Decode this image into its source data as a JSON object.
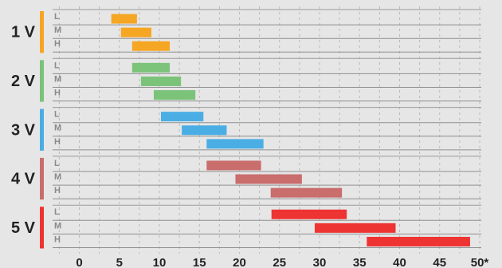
{
  "chart_data": {
    "type": "bar",
    "orientation": "horizontal-range",
    "xlim": [
      -3,
      50
    ],
    "x_ticks": [
      {
        "value": 0,
        "label": "0"
      },
      {
        "value": 5,
        "label": "5"
      },
      {
        "value": 10,
        "label": "10"
      },
      {
        "value": 15,
        "label": "15"
      },
      {
        "value": 20,
        "label": "20"
      },
      {
        "value": 25,
        "label": "25"
      },
      {
        "value": 30,
        "label": "30"
      },
      {
        "value": 35,
        "label": "35"
      },
      {
        "value": 40,
        "label": "40"
      },
      {
        "value": 45,
        "label": "45"
      },
      {
        "value": 50,
        "label": "50*"
      }
    ],
    "grid": true,
    "groups": [
      {
        "label": "1 V",
        "color": "#f5a623",
        "rows": [
          {
            "level": "L",
            "start": 4.0,
            "end": 7.2
          },
          {
            "level": "M",
            "start": 5.2,
            "end": 9.0
          },
          {
            "level": "H",
            "start": 6.6,
            "end": 11.3
          }
        ]
      },
      {
        "label": "2 V",
        "color": "#7cc37a",
        "rows": [
          {
            "level": "L",
            "start": 6.6,
            "end": 11.3
          },
          {
            "level": "M",
            "start": 7.7,
            "end": 12.7
          },
          {
            "level": "H",
            "start": 9.3,
            "end": 14.5
          }
        ]
      },
      {
        "label": "3 V",
        "color": "#4aaee4",
        "rows": [
          {
            "level": "L",
            "start": 10.2,
            "end": 15.5
          },
          {
            "level": "M",
            "start": 12.8,
            "end": 18.4
          },
          {
            "level": "H",
            "start": 15.9,
            "end": 23.0
          }
        ]
      },
      {
        "label": "4 V",
        "color": "#c96d6d",
        "rows": [
          {
            "level": "L",
            "start": 15.9,
            "end": 22.7
          },
          {
            "level": "M",
            "start": 19.5,
            "end": 27.8
          },
          {
            "level": "H",
            "start": 23.9,
            "end": 32.8
          }
        ]
      },
      {
        "label": "5 V",
        "color": "#ee3333",
        "rows": [
          {
            "level": "L",
            "start": 24.0,
            "end": 33.4
          },
          {
            "level": "M",
            "start": 29.4,
            "end": 39.5
          },
          {
            "level": "H",
            "start": 35.9,
            "end": 48.8
          }
        ]
      }
    ]
  }
}
